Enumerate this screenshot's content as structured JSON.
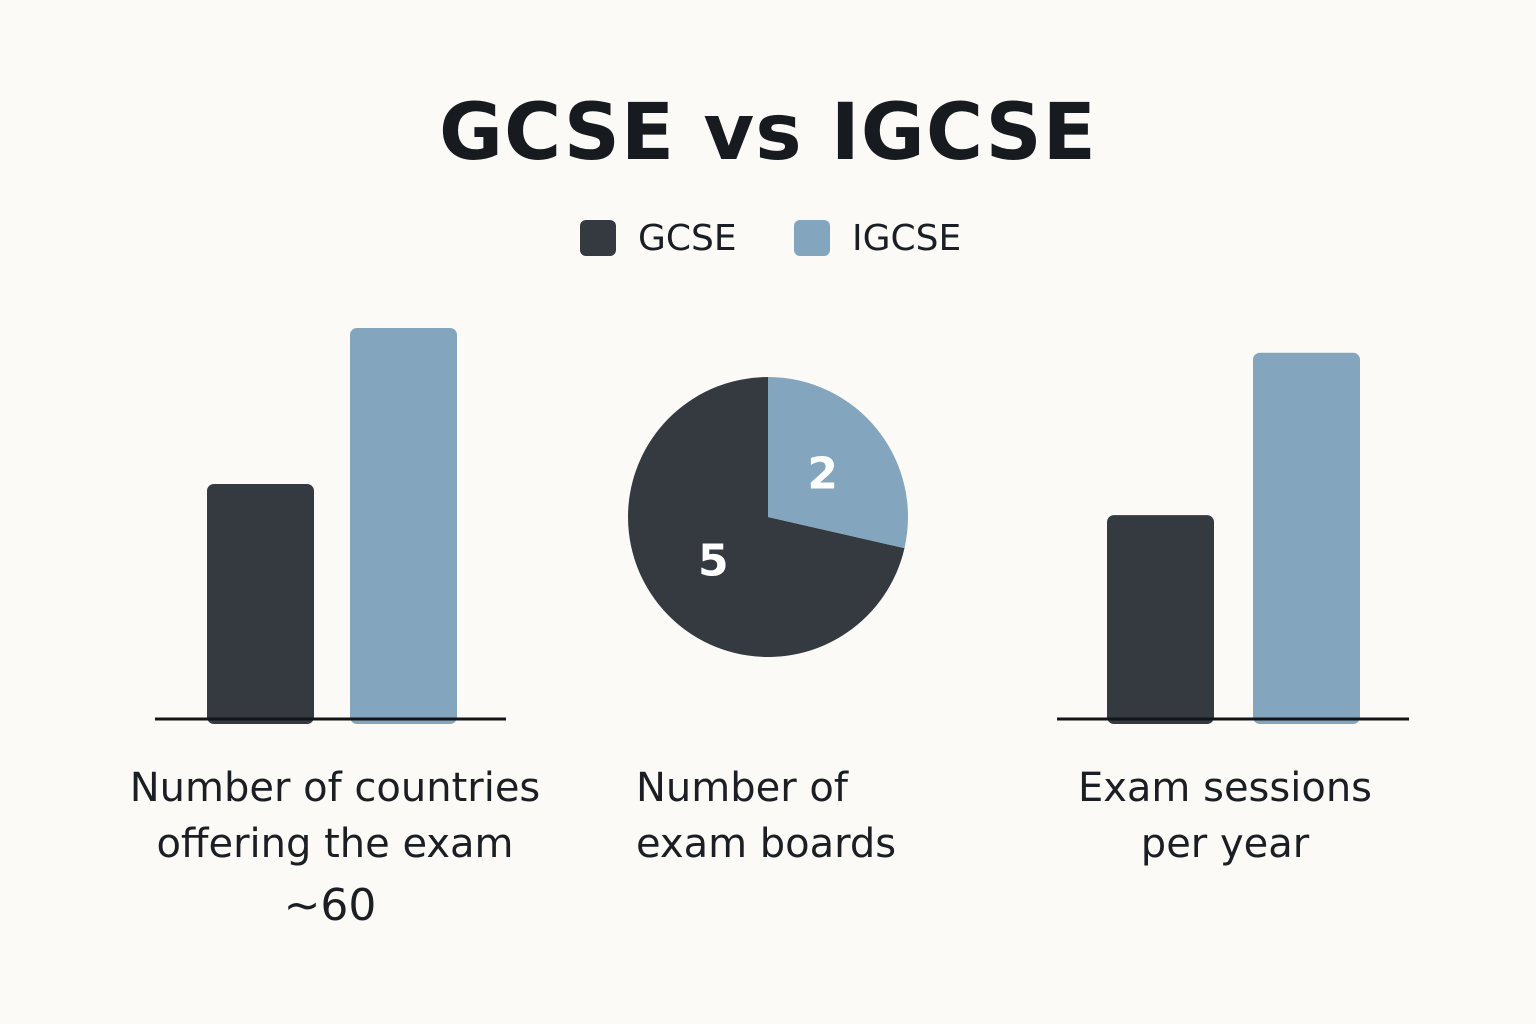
{
  "title": "GCSE vs IGCSE",
  "legend": [
    {
      "label": "GCSE",
      "color": "#353a40"
    },
    {
      "label": "IGCSE",
      "color": "#84a5be"
    }
  ],
  "chart_data": [
    {
      "type": "bar",
      "title": "Number of countries offering the exam",
      "categories": [
        "GCSE",
        "IGCSE"
      ],
      "values": [
        9,
        15
      ],
      "ylim": [
        0,
        16
      ],
      "grid": false,
      "annotation": "~60"
    },
    {
      "type": "pie",
      "title": "Number of exam boards",
      "categories": [
        "GCSE",
        "IGCSE"
      ],
      "values": [
        5,
        2
      ],
      "data_labels": [
        "5",
        "2"
      ]
    },
    {
      "type": "bar",
      "title": "Exam sessions per year",
      "categories": [
        "GCSE",
        "IGCSE"
      ],
      "values": [
        2,
        3.6
      ],
      "ylim": [
        0,
        4.1
      ],
      "grid": false
    }
  ]
}
